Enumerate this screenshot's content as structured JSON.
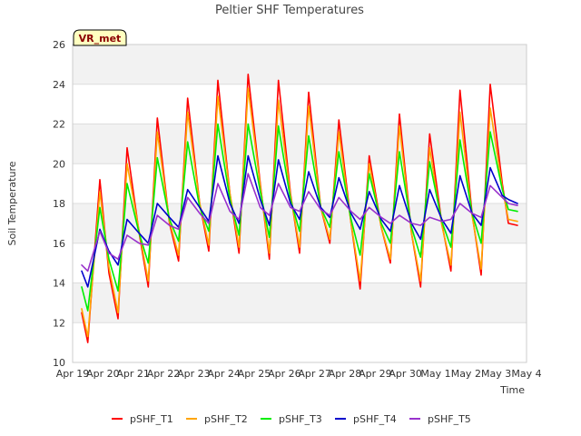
{
  "chart_data": {
    "type": "line",
    "title": "Peltier SHF Temperatures",
    "xlabel": "Time",
    "ylabel": "Soil Temperature",
    "ylim": [
      10,
      26
    ],
    "yticks": [
      10,
      12,
      14,
      16,
      18,
      20,
      22,
      24,
      26
    ],
    "xlim": [
      0,
      15
    ],
    "xtick_labels": [
      "Apr 19",
      "Apr 20",
      "Apr 21",
      "Apr 22",
      "Apr 23",
      "Apr 24",
      "Apr 25",
      "Apr 26",
      "Apr 27",
      "Apr 28",
      "Apr 29",
      "Apr 30",
      "May 1",
      "May 2",
      "May 3",
      "May 4"
    ],
    "grid": true,
    "legend_position": "bottom",
    "annotation": "VR_met",
    "series": [
      {
        "name": "pSHF_T1",
        "color": "#ff0000",
        "x": [
          0.3,
          0.5,
          0.9,
          1.2,
          1.5,
          1.8,
          2.2,
          2.5,
          2.8,
          3.2,
          3.5,
          3.8,
          4.2,
          4.5,
          4.8,
          5.2,
          5.5,
          5.8,
          6.2,
          6.5,
          6.8,
          7.2,
          7.5,
          7.8,
          8.2,
          8.5,
          8.8,
          9.2,
          9.5,
          9.8,
          10.2,
          10.5,
          10.8,
          11.2,
          11.5,
          11.8,
          12.2,
          12.5,
          12.8,
          13.2,
          13.5,
          13.8,
          14.2,
          14.4,
          14.7
        ],
        "y": [
          12.5,
          11.0,
          19.2,
          14.5,
          12.2,
          20.8,
          16.5,
          13.8,
          22.3,
          17.0,
          15.1,
          23.3,
          18.0,
          15.6,
          24.2,
          18.5,
          15.5,
          24.5,
          19.0,
          15.2,
          24.2,
          18.5,
          15.5,
          23.6,
          17.8,
          16.0,
          22.2,
          17.0,
          13.7,
          20.4,
          16.8,
          15.0,
          22.5,
          16.5,
          13.8,
          21.5,
          17.0,
          14.6,
          23.7,
          17.5,
          14.4,
          24.0,
          19.0,
          17.0,
          16.9
        ]
      },
      {
        "name": "pSHF_T2",
        "color": "#ffa500",
        "x": [
          0.3,
          0.5,
          0.9,
          1.2,
          1.5,
          1.8,
          2.2,
          2.5,
          2.8,
          3.2,
          3.5,
          3.8,
          4.2,
          4.5,
          4.8,
          5.2,
          5.5,
          5.8,
          6.2,
          6.5,
          6.8,
          7.2,
          7.5,
          7.8,
          8.2,
          8.5,
          8.8,
          9.2,
          9.5,
          9.8,
          10.2,
          10.5,
          10.8,
          11.2,
          11.5,
          11.8,
          12.2,
          12.5,
          12.8,
          13.2,
          13.5,
          13.8,
          14.2,
          14.4,
          14.7
        ],
        "y": [
          12.7,
          11.3,
          18.6,
          14.8,
          12.5,
          20.0,
          16.6,
          14.1,
          21.6,
          17.1,
          15.4,
          22.6,
          18.0,
          15.9,
          23.4,
          18.5,
          15.8,
          23.8,
          18.9,
          15.5,
          23.2,
          18.4,
          15.8,
          22.9,
          17.8,
          16.2,
          21.6,
          17.0,
          14.1,
          20.0,
          16.8,
          15.2,
          21.9,
          16.5,
          14.1,
          20.8,
          16.9,
          14.9,
          22.6,
          17.4,
          14.7,
          22.8,
          18.8,
          17.2,
          17.1
        ]
      },
      {
        "name": "pSHF_T3",
        "color": "#00ee00",
        "x": [
          0.3,
          0.5,
          0.9,
          1.2,
          1.5,
          1.8,
          2.2,
          2.5,
          2.8,
          3.2,
          3.5,
          3.8,
          4.2,
          4.5,
          4.8,
          5.2,
          5.5,
          5.8,
          6.2,
          6.5,
          6.8,
          7.2,
          7.5,
          7.8,
          8.2,
          8.5,
          8.8,
          9.2,
          9.5,
          9.8,
          10.2,
          10.5,
          10.8,
          11.2,
          11.5,
          11.8,
          12.2,
          12.5,
          12.8,
          13.2,
          13.5,
          13.8,
          14.2,
          14.4,
          14.7
        ],
        "y": [
          13.8,
          12.6,
          17.8,
          15.2,
          13.6,
          19.0,
          16.5,
          15.0,
          20.3,
          17.2,
          16.1,
          21.1,
          17.8,
          16.6,
          22.0,
          18.2,
          16.4,
          22.0,
          18.6,
          16.3,
          21.9,
          18.2,
          16.6,
          21.4,
          17.8,
          16.8,
          20.6,
          17.2,
          15.4,
          19.5,
          17.0,
          16.0,
          20.6,
          16.8,
          15.3,
          20.1,
          17.1,
          15.8,
          21.2,
          17.5,
          16.0,
          21.6,
          18.7,
          17.7,
          17.6
        ]
      },
      {
        "name": "pSHF_T4",
        "color": "#0000cc",
        "x": [
          0.3,
          0.5,
          0.9,
          1.2,
          1.5,
          1.8,
          2.2,
          2.5,
          2.8,
          3.2,
          3.5,
          3.8,
          4.2,
          4.5,
          4.8,
          5.2,
          5.5,
          5.8,
          6.2,
          6.5,
          6.8,
          7.2,
          7.5,
          7.8,
          8.2,
          8.5,
          8.8,
          9.2,
          9.5,
          9.8,
          10.2,
          10.5,
          10.8,
          11.2,
          11.5,
          11.8,
          12.2,
          12.5,
          12.8,
          13.2,
          13.5,
          13.8,
          14.2,
          14.4,
          14.7
        ],
        "y": [
          14.6,
          13.8,
          16.7,
          15.6,
          14.9,
          17.2,
          16.5,
          16.0,
          18.0,
          17.3,
          16.8,
          18.7,
          17.8,
          17.1,
          20.4,
          18.0,
          17.0,
          20.4,
          18.2,
          16.9,
          20.2,
          18.0,
          17.2,
          19.6,
          17.8,
          17.3,
          19.3,
          17.5,
          16.7,
          18.6,
          17.2,
          16.6,
          18.9,
          17.0,
          16.2,
          18.7,
          17.2,
          16.5,
          19.4,
          17.5,
          16.9,
          19.8,
          18.4,
          18.2,
          18.0
        ]
      },
      {
        "name": "pSHF_T5",
        "color": "#9932cc",
        "x": [
          0.3,
          0.5,
          0.9,
          1.2,
          1.5,
          1.8,
          2.2,
          2.5,
          2.8,
          3.2,
          3.5,
          3.8,
          4.2,
          4.5,
          4.8,
          5.2,
          5.5,
          5.8,
          6.2,
          6.5,
          6.8,
          7.2,
          7.5,
          7.8,
          8.2,
          8.5,
          8.8,
          9.2,
          9.5,
          9.8,
          10.2,
          10.5,
          10.8,
          11.2,
          11.5,
          11.8,
          12.2,
          12.5,
          12.8,
          13.2,
          13.5,
          13.8,
          14.2,
          14.4,
          14.7
        ],
        "y": [
          14.9,
          14.6,
          16.6,
          15.5,
          15.2,
          16.4,
          16.0,
          15.9,
          17.4,
          16.9,
          16.7,
          18.3,
          17.5,
          17.0,
          19.0,
          17.6,
          17.2,
          19.5,
          17.8,
          17.4,
          19.0,
          17.8,
          17.6,
          18.6,
          17.7,
          17.4,
          18.3,
          17.6,
          17.2,
          17.8,
          17.3,
          17.0,
          17.4,
          17.0,
          16.9,
          17.3,
          17.1,
          17.2,
          18.0,
          17.5,
          17.3,
          18.9,
          18.3,
          18.0,
          17.9
        ]
      }
    ]
  }
}
